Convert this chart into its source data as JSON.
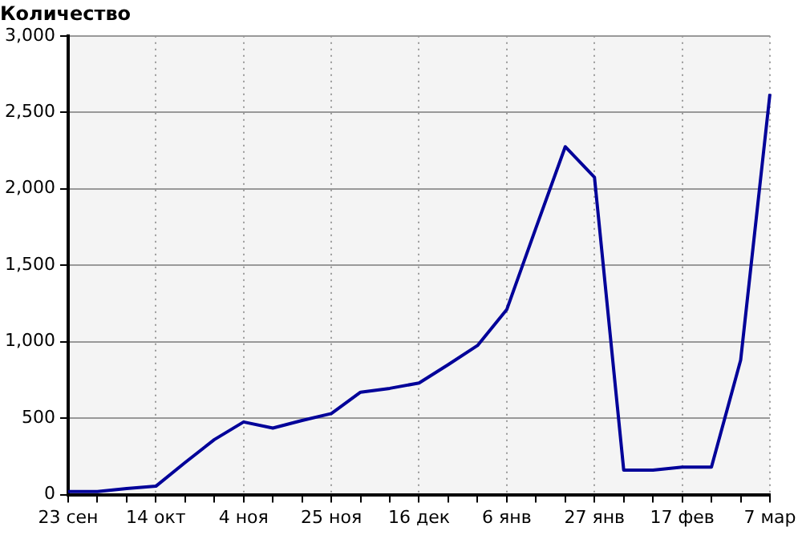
{
  "chart_data": {
    "type": "line",
    "ylabel": "Количество",
    "categories": [
      "23 сен",
      null,
      null,
      "14 окт",
      null,
      null,
      "4 ноя",
      null,
      null,
      "25 ноя",
      null,
      null,
      "16 дек",
      null,
      null,
      "6 янв",
      null,
      null,
      "27 янв",
      null,
      null,
      "17 фев",
      null,
      null,
      "7 мар"
    ],
    "series": [
      {
        "color": "#000099",
        "values": [
          20,
          20,
          40,
          55,
          210,
          360,
          475,
          435,
          485,
          530,
          670,
          695,
          730,
          850,
          975,
          1210,
          1745,
          2275,
          2075,
          160,
          160,
          180,
          180,
          880,
          2620
        ]
      }
    ],
    "ylim": [
      0,
      3000
    ],
    "yticks": [
      {
        "value": 0,
        "label": "0"
      },
      {
        "value": 500,
        "label": "500"
      },
      {
        "value": 1000,
        "label": "1,000"
      },
      {
        "value": 1500,
        "label": "1,500"
      },
      {
        "value": 2000,
        "label": "2,000"
      },
      {
        "value": 2500,
        "label": "2,500"
      },
      {
        "value": 3000,
        "label": "3,000"
      }
    ],
    "grid": true,
    "marker": "none",
    "line_style": "solid",
    "legend": false
  }
}
